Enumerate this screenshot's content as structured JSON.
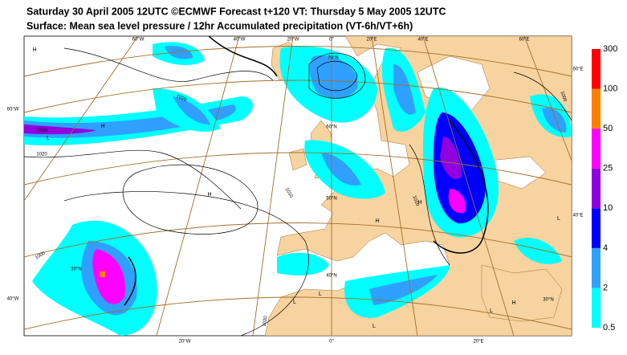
{
  "header": {
    "title": "Saturday 30 April 2005 12UTC ©ECMWF Forecast t+120 VT: Thursday 5 May 2005 12UTC",
    "subtitle": "Surface: Mean sea level pressure / 12hr Accumulated precipitation (VT-6h/VT+6h)"
  },
  "map": {
    "grid_labels": [
      "60°W",
      "40°W",
      "20°W",
      "0°",
      "20°E",
      "40°E",
      "60°E",
      "60°W",
      "40°W",
      "20°W",
      "0°",
      "20°E",
      "60°E",
      "40°E",
      "70°N",
      "60°N",
      "50°N",
      "40°N",
      "30°N",
      "30°N"
    ],
    "pressure_centers": [
      "H",
      "H",
      "L",
      "H",
      "H",
      "H",
      "L",
      "L",
      "L",
      "H",
      "L",
      "L"
    ],
    "isobar_labels": [
      "1020",
      "1030",
      "1020",
      "1000",
      "1020",
      "1010",
      "1000",
      "1010"
    ]
  },
  "legend": {
    "levels": [
      0.5,
      2,
      4,
      10,
      25,
      50,
      100,
      300
    ],
    "colors": [
      "#00ffff",
      "#2fa0ff",
      "#0000ff",
      "#9000e0",
      "#ff00ff",
      "#ff8000",
      "#ff0000"
    ]
  }
}
